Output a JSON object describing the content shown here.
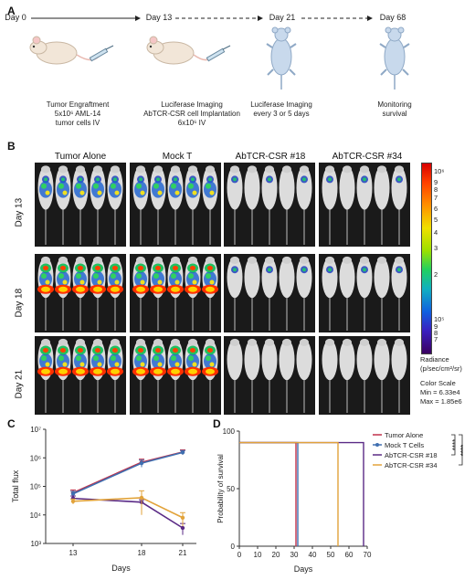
{
  "panels": {
    "a": "A",
    "b": "B",
    "c": "C",
    "d": "D"
  },
  "timeline": {
    "days": [
      "Day 0",
      "Day 13",
      "Day 21",
      "Day 68"
    ],
    "desc": [
      [
        "Tumor Engraftment",
        "5x10⁶ AML-14",
        "tumor cells IV"
      ],
      [
        "Luciferase Imaging",
        "AbTCR-CSR cell Implantation",
        "6x10⁶ IV"
      ],
      [
        "Luciferase Imaging",
        "every 3 or 5 days"
      ],
      [
        "Monitoring",
        "survival"
      ]
    ]
  },
  "imaging": {
    "columns": [
      "Tumor Alone",
      "Mock T",
      "AbTCR-CSR #18",
      "AbTCR-CSR #34"
    ],
    "rows": [
      "Day 13",
      "Day 18",
      "Day 21"
    ],
    "colorbar_ticks": [
      "10⁶",
      "9",
      "8",
      "7",
      "6",
      "5",
      "4",
      "3",
      "2",
      "10⁵",
      "9",
      "8",
      "7"
    ],
    "radiance_label": [
      "Radiance",
      "(p/sec/cm²/sr)"
    ],
    "color_scale": [
      "Color Scale",
      "Min = 6.33e4",
      "Max = 1.85e6"
    ]
  },
  "colors": {
    "tumor_alone": "#c0304a",
    "mock_t": "#3f6fb0",
    "abtcr18": "#5a2a86",
    "abtcr34": "#e2a33a"
  },
  "chart_data": [
    {
      "type": "line",
      "x": [
        13,
        18,
        21
      ],
      "xticks": [
        "13",
        "18",
        "21"
      ],
      "yticks": [
        "10³",
        "10⁴",
        "10⁵",
        "10⁶",
        "10⁷"
      ],
      "ylabel": "Total flux",
      "xlabel": "Days",
      "yscale": "log",
      "ylim": [
        1000,
        10000000
      ],
      "series": [
        {
          "name": "Tumor Alone",
          "values": [
            60000,
            700000,
            1600000
          ],
          "err": [
            15000,
            200000,
            300000
          ]
        },
        {
          "name": "Mock T Cells",
          "values": [
            55000,
            650000,
            1550000
          ],
          "err": [
            12000,
            180000,
            250000
          ]
        },
        {
          "name": "AbTCR-CSR #18",
          "values": [
            38000,
            28000,
            3500
          ],
          "err": [
            8000,
            6000,
            1500
          ]
        },
        {
          "name": "AbTCR-CSR #34",
          "values": [
            30000,
            40000,
            8000
          ],
          "err": [
            6000,
            30000,
            4000
          ]
        }
      ]
    },
    {
      "type": "line",
      "x_label": "Days",
      "y_label": "Probability of survival",
      "xticks": [
        "0",
        "10",
        "20",
        "30",
        "40",
        "50",
        "60",
        "70"
      ],
      "yticks": [
        "0",
        "50",
        "100"
      ],
      "xlim": [
        0,
        70
      ],
      "ylim": [
        0,
        100
      ],
      "series": [
        {
          "name": "Tumor Alone",
          "steps": [
            [
              0,
              90
            ],
            [
              31,
              90
            ],
            [
              31,
              0
            ]
          ]
        },
        {
          "name": "Mock T Cells",
          "steps": [
            [
              0,
              90
            ],
            [
              32,
              90
            ],
            [
              32,
              0
            ]
          ]
        },
        {
          "name": "AbTCR-CSR #18",
          "steps": [
            [
              0,
              90
            ],
            [
              68,
              90
            ],
            [
              68,
              0
            ]
          ]
        },
        {
          "name": "AbTCR-CSR #34",
          "steps": [
            [
              0,
              90
            ],
            [
              54,
              90
            ],
            [
              54,
              0
            ]
          ]
        }
      ],
      "significance": [
        "****",
        "****"
      ]
    }
  ]
}
